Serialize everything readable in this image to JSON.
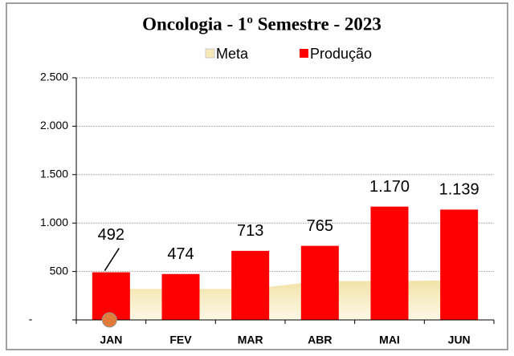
{
  "chart_data": {
    "type": "bar",
    "title": "Oncologia - 1º Semestre - 2023",
    "categories": [
      "JAN",
      "FEV",
      "MAR",
      "ABR",
      "MAI",
      "JUN"
    ],
    "series": [
      {
        "name": "Meta",
        "type": "area",
        "color": "#f7e9b8",
        "values": [
          320,
          320,
          320,
          400,
          400,
          410
        ]
      },
      {
        "name": "Produção",
        "type": "bar",
        "color": "#ff0000",
        "values": [
          492,
          474,
          713,
          765,
          1170,
          1139
        ],
        "value_labels": [
          "492",
          "474",
          "713",
          "765",
          "1.170",
          "1.139"
        ]
      }
    ],
    "ylim": [
      0,
      2500
    ],
    "yticks": [
      {
        "value": 0,
        "label": "-"
      },
      500,
      {
        "value": 1000,
        "label": "1.000"
      },
      {
        "value": 1500,
        "label": "1.500"
      },
      {
        "value": 2000,
        "label": "2.000"
      },
      {
        "value": 2500,
        "label": "2.500"
      }
    ],
    "grid": true,
    "legend": "top"
  }
}
